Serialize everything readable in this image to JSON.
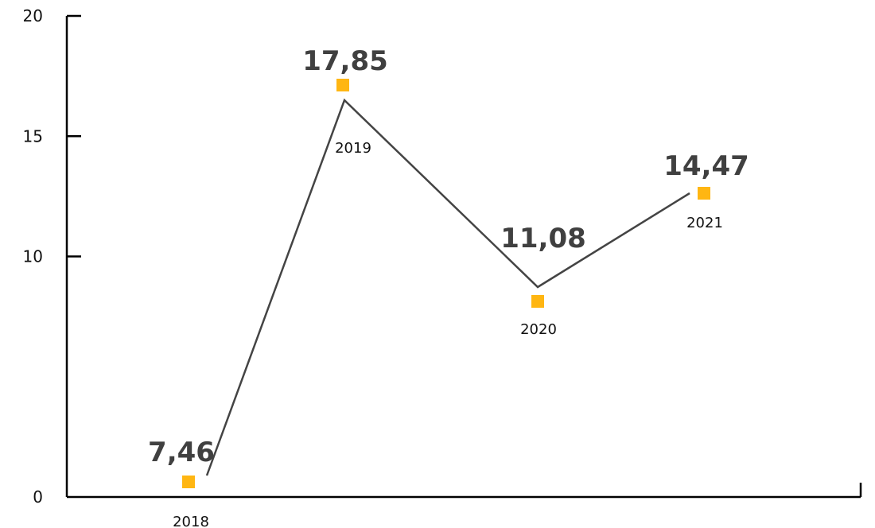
{
  "chart_data": {
    "type": "line",
    "title": "",
    "xlabel": "",
    "ylabel": "",
    "ylim": [
      0,
      20
    ],
    "yticks": [
      0,
      10,
      15,
      20
    ],
    "grid": false,
    "legend": "none",
    "line_color": "#444444",
    "marker_color": "#FFB612",
    "axis_color": "#000000",
    "points": [
      {
        "year": "2018",
        "value": 7.46,
        "label": "7,46"
      },
      {
        "year": "2019",
        "value": 17.85,
        "label": "17,85"
      },
      {
        "year": "2020",
        "value": 11.08,
        "label": "11,08"
      },
      {
        "year": "2021",
        "value": 14.47,
        "label": "14,47"
      }
    ]
  }
}
